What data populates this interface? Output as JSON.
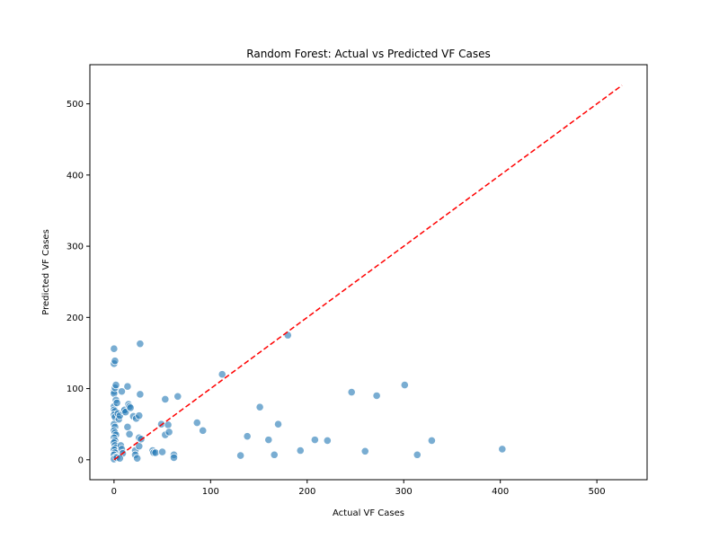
{
  "chart_data": {
    "type": "scatter",
    "title": "Random Forest: Actual vs Predicted VF Cases",
    "xlabel": "Actual VF Cases",
    "ylabel": "Predicted VF Cases",
    "xlim": [
      -25,
      552
    ],
    "ylim": [
      -28,
      555
    ],
    "xticks": [
      0,
      100,
      200,
      300,
      400,
      500
    ],
    "yticks": [
      0,
      100,
      200,
      300,
      400,
      500
    ],
    "grid": false,
    "legend": "none",
    "colors": {
      "points": "#1f77b4",
      "reference": "#ff0000"
    },
    "reference_line": {
      "style": "dashed",
      "from": [
        0,
        0
      ],
      "to": [
        526,
        526
      ]
    },
    "points": [
      {
        "x": 0,
        "y": 156
      },
      {
        "x": 0,
        "y": 135
      },
      {
        "x": 1,
        "y": 139
      },
      {
        "x": 0,
        "y": 96
      },
      {
        "x": 0,
        "y": 93
      },
      {
        "x": 1,
        "y": 101
      },
      {
        "x": 2,
        "y": 105
      },
      {
        "x": 0,
        "y": 75
      },
      {
        "x": 0,
        "y": 70
      },
      {
        "x": 1,
        "y": 68
      },
      {
        "x": 0,
        "y": 63
      },
      {
        "x": 1,
        "y": 60
      },
      {
        "x": 2,
        "y": 84
      },
      {
        "x": 3,
        "y": 80
      },
      {
        "x": 0,
        "y": 50
      },
      {
        "x": 1,
        "y": 46
      },
      {
        "x": 0,
        "y": 41
      },
      {
        "x": 1,
        "y": 38
      },
      {
        "x": 2,
        "y": 35
      },
      {
        "x": 0,
        "y": 31
      },
      {
        "x": 1,
        "y": 27
      },
      {
        "x": 0,
        "y": 24
      },
      {
        "x": 1,
        "y": 20
      },
      {
        "x": 2,
        "y": 17
      },
      {
        "x": 0,
        "y": 14
      },
      {
        "x": 1,
        "y": 10
      },
      {
        "x": 0,
        "y": 7
      },
      {
        "x": 2,
        "y": 4
      },
      {
        "x": 0,
        "y": 1
      },
      {
        "x": 3,
        "y": 3
      },
      {
        "x": 4,
        "y": 65
      },
      {
        "x": 5,
        "y": 57
      },
      {
        "x": 6,
        "y": 62
      },
      {
        "x": 7,
        "y": 20
      },
      {
        "x": 8,
        "y": 15
      },
      {
        "x": 9,
        "y": 9
      },
      {
        "x": 6,
        "y": 2
      },
      {
        "x": 8,
        "y": 96
      },
      {
        "x": 10,
        "y": 68
      },
      {
        "x": 11,
        "y": 70
      },
      {
        "x": 12,
        "y": 67
      },
      {
        "x": 14,
        "y": 103
      },
      {
        "x": 15,
        "y": 78
      },
      {
        "x": 16,
        "y": 75
      },
      {
        "x": 17,
        "y": 73
      },
      {
        "x": 14,
        "y": 46
      },
      {
        "x": 16,
        "y": 36
      },
      {
        "x": 20,
        "y": 61
      },
      {
        "x": 23,
        "y": 58
      },
      {
        "x": 26,
        "y": 62
      },
      {
        "x": 27,
        "y": 92
      },
      {
        "x": 27,
        "y": 163
      },
      {
        "x": 22,
        "y": 13
      },
      {
        "x": 22,
        "y": 7
      },
      {
        "x": 24,
        "y": 2
      },
      {
        "x": 26,
        "y": 19
      },
      {
        "x": 26,
        "y": 31
      },
      {
        "x": 28,
        "y": 29
      },
      {
        "x": 40,
        "y": 13
      },
      {
        "x": 41,
        "y": 10
      },
      {
        "x": 43,
        "y": 10
      },
      {
        "x": 49,
        "y": 50
      },
      {
        "x": 50,
        "y": 11
      },
      {
        "x": 53,
        "y": 85
      },
      {
        "x": 53,
        "y": 35
      },
      {
        "x": 56,
        "y": 49
      },
      {
        "x": 57,
        "y": 39
      },
      {
        "x": 62,
        "y": 7
      },
      {
        "x": 62,
        "y": 3
      },
      {
        "x": 66,
        "y": 89
      },
      {
        "x": 86,
        "y": 52
      },
      {
        "x": 92,
        "y": 41
      },
      {
        "x": 112,
        "y": 120
      },
      {
        "x": 131,
        "y": 6
      },
      {
        "x": 138,
        "y": 33
      },
      {
        "x": 151,
        "y": 74
      },
      {
        "x": 160,
        "y": 28
      },
      {
        "x": 166,
        "y": 7
      },
      {
        "x": 170,
        "y": 50
      },
      {
        "x": 180,
        "y": 175
      },
      {
        "x": 193,
        "y": 13
      },
      {
        "x": 208,
        "y": 28
      },
      {
        "x": 221,
        "y": 27
      },
      {
        "x": 246,
        "y": 95
      },
      {
        "x": 260,
        "y": 12
      },
      {
        "x": 272,
        "y": 90
      },
      {
        "x": 301,
        "y": 105
      },
      {
        "x": 314,
        "y": 7
      },
      {
        "x": 329,
        "y": 27
      },
      {
        "x": 402,
        "y": 15
      }
    ]
  }
}
